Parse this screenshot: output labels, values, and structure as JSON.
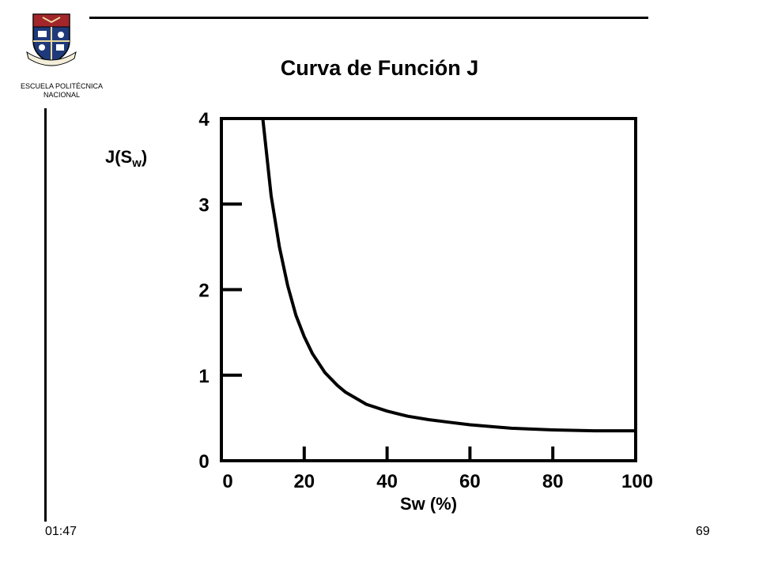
{
  "header": {
    "institution_line1": "ESCUELA POLITÉCNICA",
    "institution_line2": "NACIONAL",
    "title": "Curva de Función J"
  },
  "footer": {
    "time": "01:47",
    "page_number": "69"
  },
  "chart_data": {
    "type": "line",
    "title": "",
    "xlabel": "Sw (%)",
    "ylabel_main": "J(S",
    "ylabel_sub": "w",
    "ylabel_close": ")",
    "xlim": [
      0,
      100
    ],
    "ylim": [
      0,
      4
    ],
    "x_ticks": [
      0,
      20,
      40,
      60,
      80,
      100
    ],
    "y_ticks": [
      0,
      1,
      2,
      3,
      4
    ],
    "grid": false,
    "series": [
      {
        "values_x": [
          10,
          12,
          14,
          16,
          18,
          20,
          22,
          25,
          28,
          30,
          35,
          40,
          45,
          50,
          55,
          60,
          70,
          80,
          90,
          100
        ],
        "values_y": [
          4.0,
          3.1,
          2.5,
          2.05,
          1.7,
          1.45,
          1.25,
          1.03,
          0.88,
          0.8,
          0.66,
          0.58,
          0.52,
          0.48,
          0.45,
          0.42,
          0.38,
          0.36,
          0.35,
          0.35
        ]
      }
    ],
    "colors": {
      "line": "#000000",
      "frame": "#000000"
    }
  },
  "icons": {
    "logo": "university-crest-icon"
  }
}
